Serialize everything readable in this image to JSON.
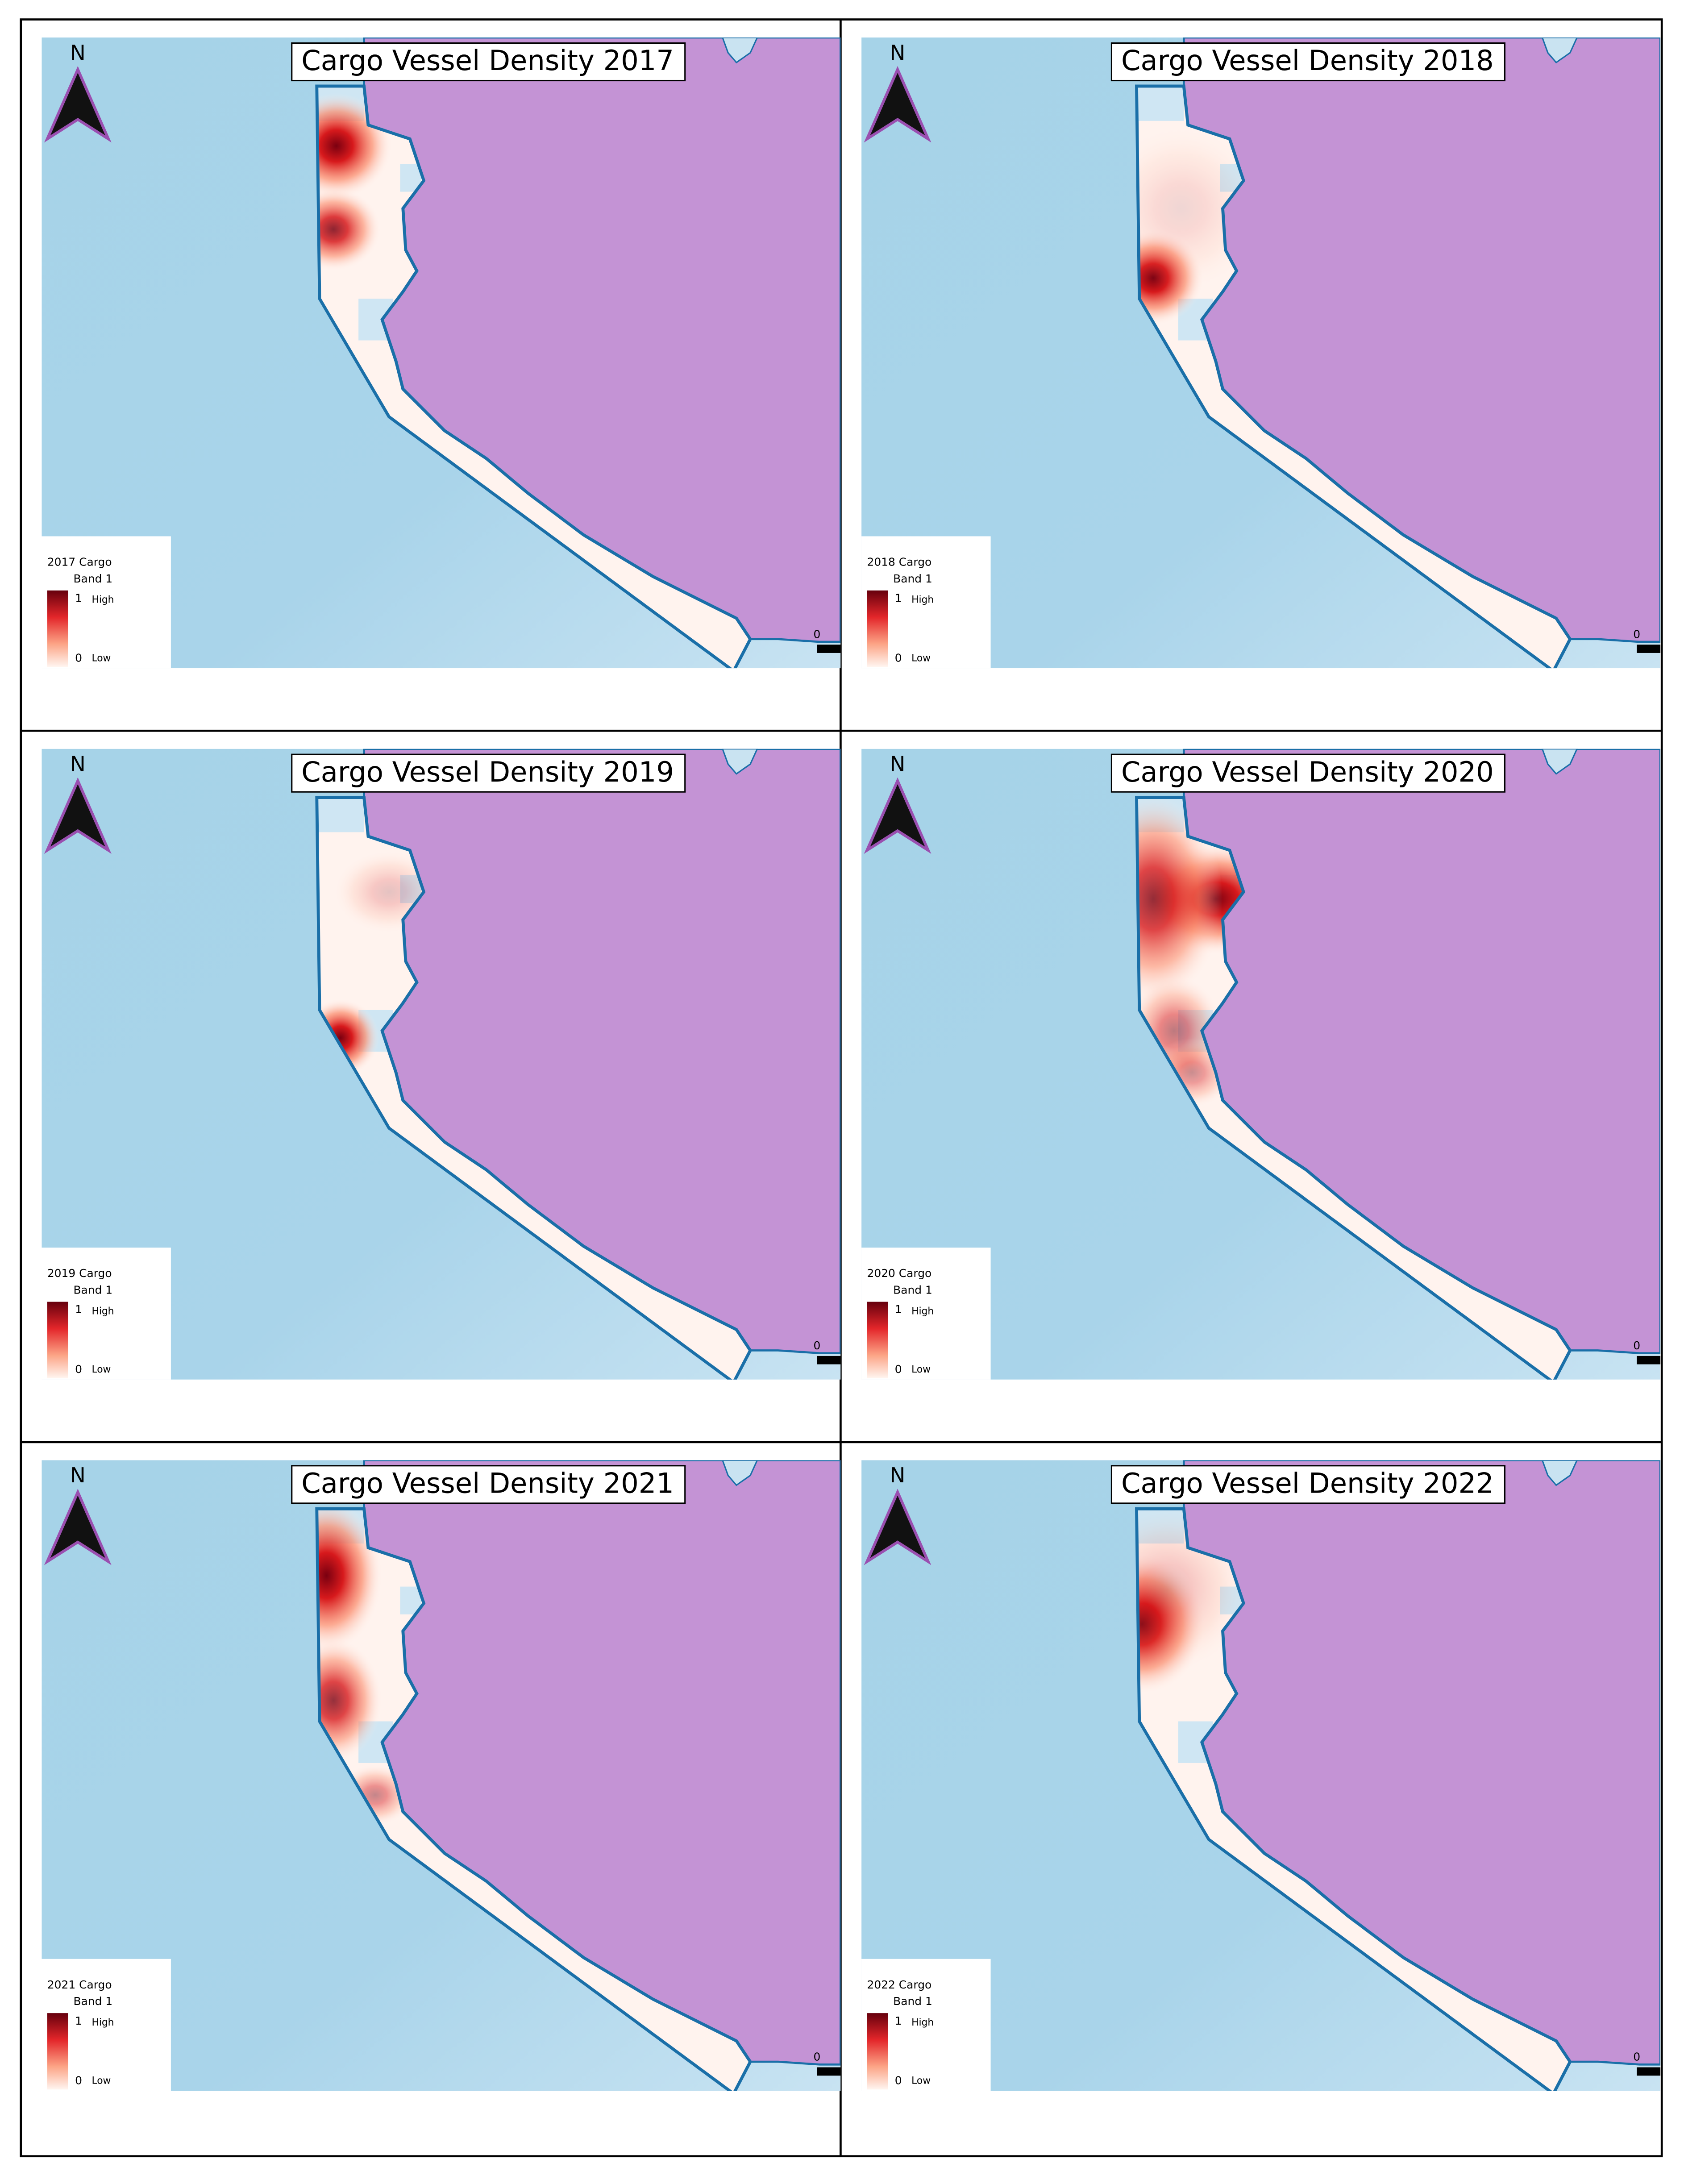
{
  "panels": [
    {
      "title": "Cargo Vessel Density 2017",
      "north": "N",
      "scale_label": "0",
      "legend": {
        "title": "2017 Cargo",
        "band": "Band 1",
        "high_value": "1",
        "high_label": "High",
        "low_value": "0",
        "low_label": "Low"
      }
    },
    {
      "title": "Cargo Vessel Density 2018",
      "north": "N",
      "scale_label": "0",
      "legend": {
        "title": "2018 Cargo",
        "band": "Band 1",
        "high_value": "1",
        "high_label": "High",
        "low_value": "0",
        "low_label": "Low"
      }
    },
    {
      "title": "Cargo Vessel Density 2019",
      "north": "N",
      "scale_label": "0",
      "legend": {
        "title": "2019 Cargo",
        "band": "Band 1",
        "high_value": "1",
        "high_label": "High",
        "low_value": "0",
        "low_label": "Low"
      }
    },
    {
      "title": "Cargo Vessel Density 2020",
      "north": "N",
      "scale_label": "0",
      "legend": {
        "title": "2020 Cargo",
        "band": "Band 1",
        "high_value": "1",
        "high_label": "High",
        "low_value": "0",
        "low_label": "Low"
      }
    },
    {
      "title": "Cargo Vessel Density 2021",
      "north": "N",
      "scale_label": "0",
      "legend": {
        "title": "2021 Cargo",
        "band": "Band 1",
        "high_value": "1",
        "high_label": "High",
        "low_value": "0",
        "low_label": "Low"
      }
    },
    {
      "title": "Cargo Vessel Density 2022",
      "north": "N",
      "scale_label": "0",
      "legend": {
        "title": "2022 Cargo",
        "band": "Band 1",
        "high_value": "1",
        "high_label": "High",
        "low_value": "0",
        "low_label": "Low"
      }
    }
  ]
}
